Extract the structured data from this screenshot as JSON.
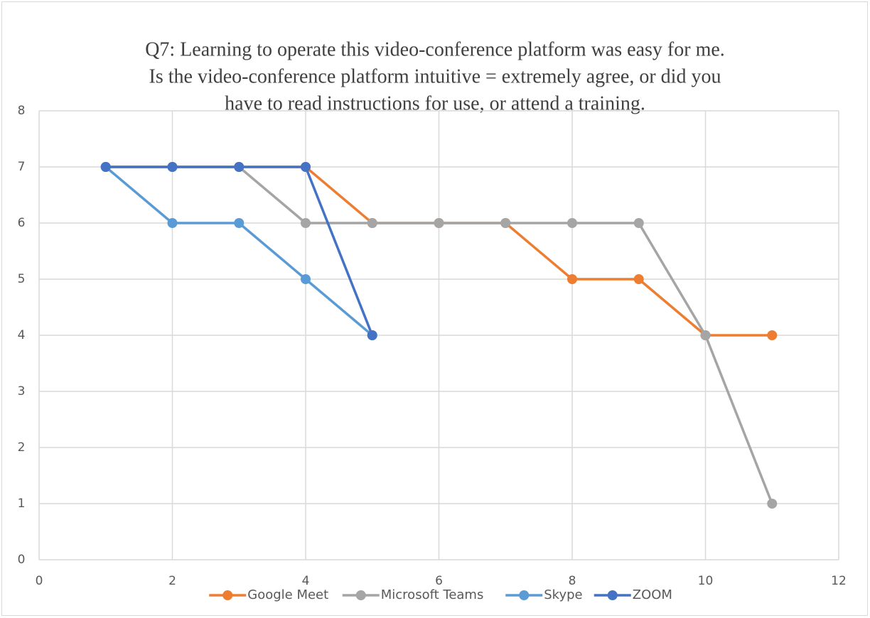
{
  "chart_data": {
    "type": "line",
    "title": [
      "Q7: Learning to operate this video-conference platform was easy for me.",
      "Is the video-conference platform intuitive = extremely agree, or did you",
      "have to read instructions for use, or attend a training."
    ],
    "x": [
      1,
      2,
      3,
      4,
      5,
      6,
      7,
      8,
      9,
      10,
      11
    ],
    "series": [
      {
        "name": "Google Meet",
        "color": "#ed7d31",
        "values": [
          7,
          7,
          7,
          7,
          6,
          6,
          6,
          5,
          5,
          4,
          4
        ]
      },
      {
        "name": "Microsoft Teams",
        "color": "#a5a5a5",
        "values": [
          7,
          7,
          7,
          6,
          6,
          6,
          6,
          6,
          6,
          4,
          1
        ]
      },
      {
        "name": "Skype",
        "color": "#5b9bd5",
        "values": [
          7,
          6,
          6,
          5,
          4,
          null,
          null,
          null,
          null,
          null,
          null
        ]
      },
      {
        "name": "ZOOM",
        "color": "#4472c4",
        "values": [
          7,
          7,
          7,
          7,
          4,
          null,
          null,
          null,
          null,
          null,
          null
        ]
      }
    ],
    "xlim": [
      0,
      12
    ],
    "xticks": [
      0,
      2,
      4,
      6,
      8,
      10,
      12
    ],
    "ylim": [
      0,
      8
    ],
    "yticks": [
      0,
      1,
      2,
      3,
      4,
      5,
      6,
      7,
      8
    ],
    "grid": true,
    "legend": "bottom"
  }
}
